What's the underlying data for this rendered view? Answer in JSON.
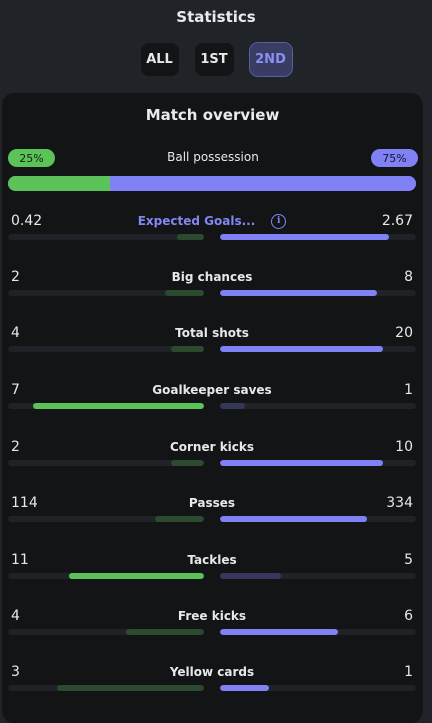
{
  "header": {
    "title": "Statistics",
    "tabs": [
      {
        "label": "ALL",
        "active": false
      },
      {
        "label": "1ST",
        "active": false
      },
      {
        "label": "2ND",
        "active": true
      }
    ]
  },
  "overview": {
    "title": "Match overview",
    "possession": {
      "label": "Ball possession",
      "home": "25%",
      "away": "75%",
      "home_fraction": 0.25
    },
    "stats": [
      {
        "label": "Expected Goals...",
        "home": "0.42",
        "away": "2.67",
        "home_fill": 0.14,
        "away_fill": 0.86,
        "leader": "away",
        "link": true,
        "info_icon": "info-icon"
      },
      {
        "label": "Big chances",
        "home": "2",
        "away": "8",
        "home_fill": 0.2,
        "away_fill": 0.8,
        "leader": "away"
      },
      {
        "label": "Total shots",
        "home": "4",
        "away": "20",
        "home_fill": 0.17,
        "away_fill": 0.83,
        "leader": "away"
      },
      {
        "label": "Goalkeeper saves",
        "home": "7",
        "away": "1",
        "home_fill": 0.875,
        "away_fill": 0.125,
        "leader": "home"
      },
      {
        "label": "Corner kicks",
        "home": "2",
        "away": "10",
        "home_fill": 0.17,
        "away_fill": 0.83,
        "leader": "away"
      },
      {
        "label": "Passes",
        "home": "114",
        "away": "334",
        "home_fill": 0.25,
        "away_fill": 0.75,
        "leader": "away"
      },
      {
        "label": "Tackles",
        "home": "11",
        "away": "5",
        "home_fill": 0.69,
        "away_fill": 0.31,
        "leader": "home"
      },
      {
        "label": "Free kicks",
        "home": "4",
        "away": "6",
        "home_fill": 0.4,
        "away_fill": 0.6,
        "leader": "away"
      },
      {
        "label": "Yellow cards",
        "home": "3",
        "away": "1",
        "home_fill": 0.75,
        "away_fill": 0.25,
        "leader": "away"
      }
    ]
  },
  "colors": {
    "home": "#5cc359",
    "away": "#7f81f4",
    "home_dim": "#2c4a30",
    "away_dim": "#34365a"
  }
}
